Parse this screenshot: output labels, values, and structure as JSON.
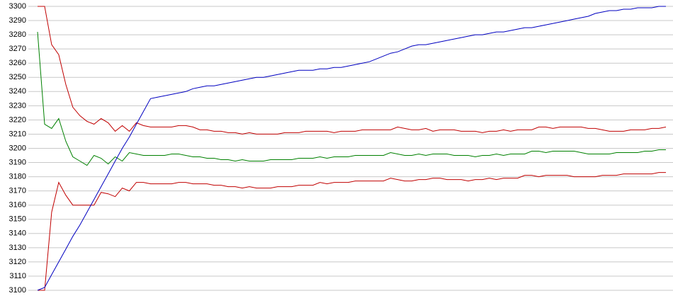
{
  "chart_data": {
    "type": "line",
    "categories": [
      null,
      null,
      null,
      null,
      null,
      null,
      null,
      null,
      null,
      null,
      null,
      null,
      null,
      null,
      null,
      null,
      null,
      null,
      null,
      null,
      null,
      null,
      null,
      null,
      null,
      null,
      null,
      null,
      null,
      null,
      null,
      null,
      null,
      null,
      null,
      null,
      null,
      null,
      null,
      null,
      null,
      null,
      null,
      null,
      null,
      null,
      null,
      null,
      null,
      null,
      null,
      null,
      null,
      null,
      null,
      null,
      null,
      null,
      null,
      null,
      null,
      null,
      null,
      null,
      null,
      null,
      null,
      null,
      null,
      null,
      null,
      null,
      null,
      null,
      null,
      null,
      null,
      null,
      null,
      null,
      null,
      null,
      null,
      null,
      null,
      null,
      null,
      null,
      null,
      null
    ],
    "series": [
      {
        "color": "#c00000",
        "values": [
          3300,
          3300,
          3273,
          3266,
          3245,
          3229,
          3223,
          3219,
          3217,
          3221,
          3218,
          3212,
          3216,
          3212,
          3218,
          3216,
          3215,
          3215,
          3215,
          3215,
          3216,
          3216,
          3215,
          3213,
          3213,
          3212,
          3212,
          3211,
          3211,
          3210,
          3211,
          3210,
          3210,
          3210,
          3210,
          3211,
          3211,
          3211,
          3212,
          3212,
          3212,
          3212,
          3211,
          3212,
          3212,
          3212,
          3213,
          3213,
          3213,
          3213,
          3213,
          3215,
          3214,
          3213,
          3213,
          3214,
          3212,
          3213,
          3213,
          3213,
          3212,
          3212,
          3212,
          3211,
          3212,
          3212,
          3213,
          3212,
          3213,
          3213,
          3213,
          3215,
          3215,
          3214,
          3215,
          3215,
          3215,
          3215,
          3214,
          3214,
          3213,
          3212,
          3212,
          3212,
          3213,
          3213,
          3213,
          3214,
          3214,
          3215
        ]
      },
      {
        "color": "#008000",
        "values": [
          3282,
          3217,
          3214,
          3221,
          3205,
          3194,
          3191,
          3188,
          3195,
          3193,
          3189,
          3194,
          3191,
          3197,
          3196,
          3195,
          3195,
          3195,
          3195,
          3196,
          3196,
          3195,
          3194,
          3194,
          3193,
          3193,
          3192,
          3192,
          3191,
          3192,
          3191,
          3191,
          3191,
          3192,
          3192,
          3192,
          3192,
          3193,
          3193,
          3193,
          3194,
          3193,
          3194,
          3194,
          3194,
          3195,
          3195,
          3195,
          3195,
          3195,
          3197,
          3196,
          3195,
          3195,
          3196,
          3195,
          3196,
          3196,
          3196,
          3195,
          3195,
          3195,
          3194,
          3195,
          3195,
          3196,
          3195,
          3196,
          3196,
          3196,
          3198,
          3198,
          3197,
          3198,
          3198,
          3198,
          3198,
          3197,
          3196,
          3196,
          3196,
          3196,
          3197,
          3197,
          3197,
          3197,
          3198,
          3198,
          3199,
          3199
        ]
      },
      {
        "color": "#c00000",
        "values": [
          3100,
          3100,
          3155,
          3176,
          3167,
          3160,
          3160,
          3160,
          3160,
          3169,
          3168,
          3166,
          3172,
          3170,
          3176,
          3176,
          3175,
          3175,
          3175,
          3175,
          3176,
          3176,
          3175,
          3175,
          3175,
          3174,
          3174,
          3173,
          3173,
          3172,
          3173,
          3172,
          3172,
          3172,
          3173,
          3173,
          3173,
          3174,
          3174,
          3174,
          3176,
          3175,
          3176,
          3176,
          3176,
          3177,
          3177,
          3177,
          3177,
          3177,
          3179,
          3178,
          3177,
          3177,
          3178,
          3178,
          3179,
          3179,
          3178,
          3178,
          3178,
          3177,
          3178,
          3178,
          3179,
          3178,
          3179,
          3179,
          3179,
          3181,
          3181,
          3180,
          3181,
          3181,
          3181,
          3181,
          3180,
          3180,
          3180,
          3180,
          3181,
          3181,
          3181,
          3182,
          3182,
          3182,
          3182,
          3182,
          3183,
          3183
        ]
      },
      {
        "color": "#0000c0",
        "values": [
          3100,
          3102,
          3111,
          3120,
          3129,
          3138,
          3146,
          3155,
          3164,
          3173,
          3182,
          3191,
          3200,
          3208,
          3217,
          3226,
          3235,
          3236,
          3237,
          3238,
          3239,
          3240,
          3242,
          3243,
          3244,
          3244,
          3245,
          3246,
          3247,
          3248,
          3249,
          3250,
          3250,
          3251,
          3252,
          3253,
          3254,
          3255,
          3255,
          3255,
          3256,
          3256,
          3257,
          3257,
          3258,
          3259,
          3260,
          3261,
          3263,
          3265,
          3267,
          3268,
          3270,
          3272,
          3273,
          3273,
          3274,
          3275,
          3276,
          3277,
          3278,
          3279,
          3280,
          3280,
          3281,
          3282,
          3282,
          3283,
          3284,
          3285,
          3285,
          3286,
          3287,
          3288,
          3289,
          3290,
          3291,
          3292,
          3293,
          3295,
          3296,
          3297,
          3297,
          3298,
          3298,
          3299,
          3299,
          3299,
          3300,
          3300
        ]
      }
    ],
    "ylim": [
      3100,
      3300
    ],
    "yticks": [
      3100,
      3110,
      3120,
      3130,
      3140,
      3150,
      3160,
      3170,
      3180,
      3190,
      3200,
      3210,
      3220,
      3230,
      3240,
      3250,
      3260,
      3270,
      3280,
      3290,
      3300
    ],
    "grid": true
  }
}
